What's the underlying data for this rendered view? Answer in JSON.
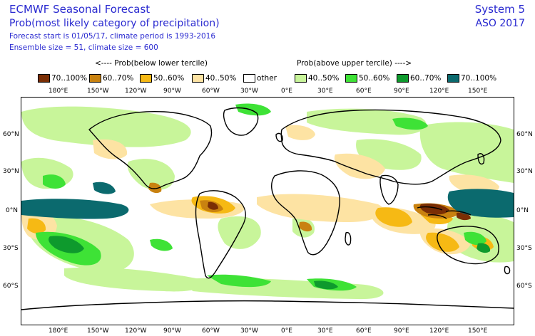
{
  "header": {
    "title": "ECMWF Seasonal Forecast",
    "subtitle": "Prob(most likely category of precipitation)",
    "forecast_info": "Forecast start is 01/05/17, climate period is 1993-2016",
    "ensemble_info": "Ensemble size = 51, climate size = 600",
    "system": "System 5",
    "period": "ASO 2017"
  },
  "legend": {
    "below_caption": "<---- Prob(below lower tercile)",
    "above_caption": "Prob(above upper tercile) ---->",
    "items": [
      {
        "label": "70..100%",
        "color": "#7a2e05"
      },
      {
        "label": "60..70%",
        "color": "#c98210"
      },
      {
        "label": "50..60%",
        "color": "#f6b914"
      },
      {
        "label": "40..50%",
        "color": "#fde3a3"
      },
      {
        "label": "other",
        "color": "#ffffff"
      },
      {
        "label": "40..50%",
        "color": "#c8f59a"
      },
      {
        "label": "50..60%",
        "color": "#3ee236"
      },
      {
        "label": "60..70%",
        "color": "#0e9a2d"
      },
      {
        "label": "70..100%",
        "color": "#0b6a6e"
      }
    ]
  },
  "axes": {
    "lon_labels": [
      "180°E",
      "150°W",
      "120°W",
      "90°W",
      "60°W",
      "30°W",
      "0°E",
      "30°E",
      "60°E",
      "90°E",
      "120°E",
      "150°E"
    ],
    "lat_labels": [
      "60°N",
      "30°N",
      "0°N",
      "30°S",
      "60°S"
    ]
  }
}
